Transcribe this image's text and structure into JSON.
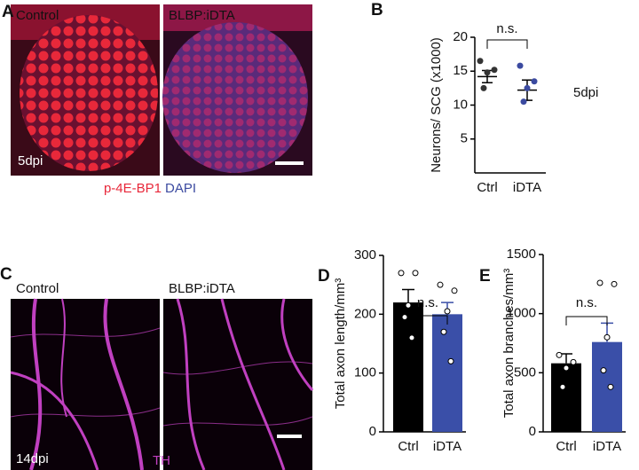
{
  "figure": {
    "panels": [
      "A",
      "B",
      "C",
      "D",
      "E"
    ],
    "image_a": {
      "left": "Control",
      "right": "BLBP:iDTA",
      "time": "5dpi",
      "stain1": "p-4E-BP1",
      "stain2": "DAPI"
    },
    "image_c": {
      "left": "Control",
      "right": "BLBP:iDTA",
      "time": "14dpi",
      "stain": "TH"
    },
    "b_note": "5dpi"
  },
  "chart_data": [
    {
      "type": "dot",
      "ylabel": "Neurons/ SCG (x1000)",
      "categories": [
        "Ctrl",
        "iDTA"
      ],
      "values": [
        14.2,
        12.2
      ],
      "errors": [
        0.9,
        1.5
      ],
      "points": [
        [
          16.5,
          15.2,
          14.8,
          12.5
        ],
        [
          15.8,
          13.5,
          12.5,
          10.5
        ]
      ],
      "colors": [
        "#333333",
        "#3b4aa0"
      ],
      "annotation": "n.s.",
      "ylim": [
        0,
        20
      ],
      "yticks": [
        5,
        10,
        15,
        20
      ]
    },
    {
      "type": "bar",
      "ylabel": "Total axon length/mm³",
      "categories": [
        "Ctrl",
        "iDTA"
      ],
      "values": [
        220,
        200
      ],
      "errors": [
        22,
        20
      ],
      "points": [
        [
          270,
          270,
          215,
          195,
          160
        ],
        [
          250,
          240,
          205,
          170,
          120
        ]
      ],
      "colors": [
        "#000000",
        "#3a4fa8"
      ],
      "annotation": "n.s.",
      "ylim": [
        0,
        300
      ],
      "yticks": [
        0,
        100,
        200,
        300
      ]
    },
    {
      "type": "bar",
      "ylabel": "Total axon branches/mm³",
      "categories": [
        "Ctrl",
        "iDTA"
      ],
      "values": [
        580,
        760
      ],
      "errors": [
        80,
        160
      ],
      "points": [
        [
          650,
          590,
          540,
          380
        ],
        [
          1260,
          1250,
          800,
          520,
          380
        ]
      ],
      "colors": [
        "#000000",
        "#3a4fa8"
      ],
      "annotation": "n.s.",
      "ylim": [
        0,
        1500
      ],
      "yticks": [
        0,
        500,
        1000,
        1500
      ]
    }
  ]
}
